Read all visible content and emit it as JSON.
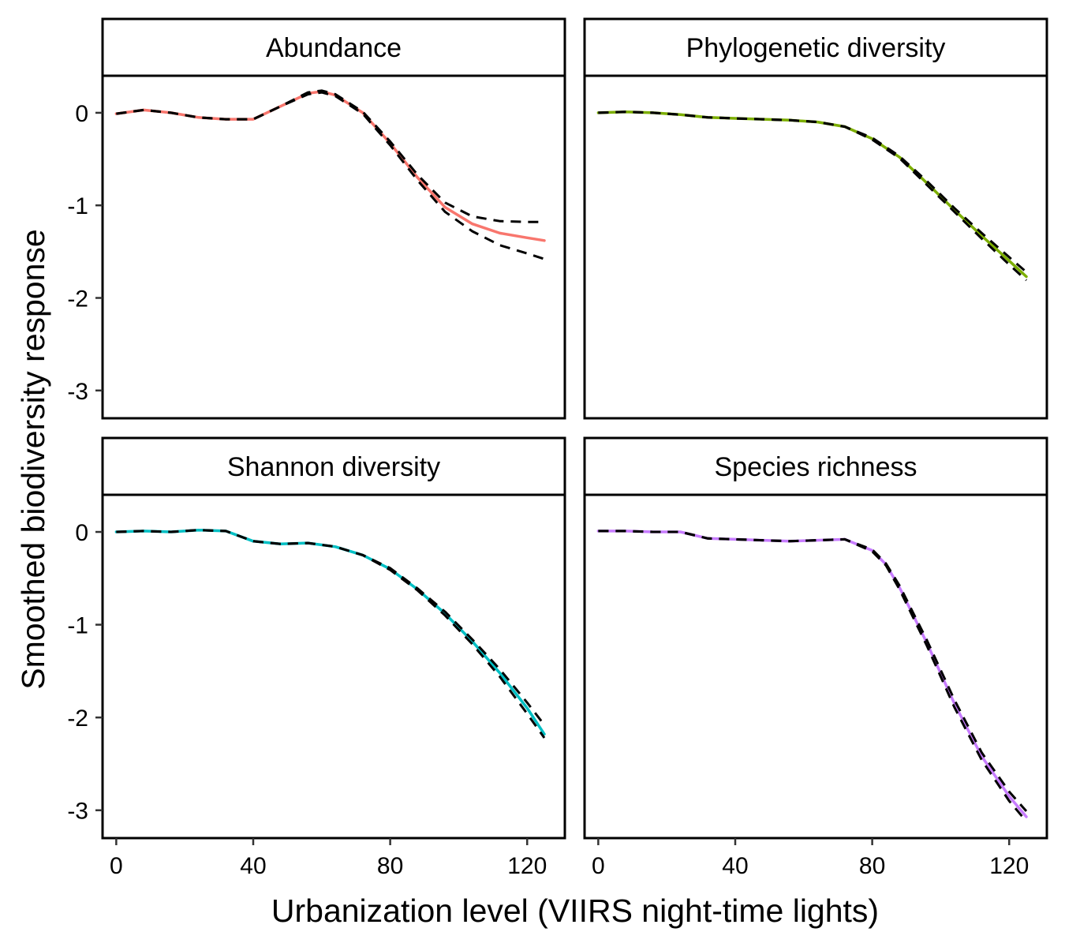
{
  "chart_data": {
    "type": "line",
    "layout": "facet-grid-2x2",
    "xlabel": "Urbanization level (VIIRS night-time lights)",
    "ylabel": "Smoothed biodiversity response",
    "xlim": [
      -4,
      131
    ],
    "ylim": [
      -3.3,
      0.4
    ],
    "x_ticks": [
      0,
      40,
      80,
      120
    ],
    "y_ticks": [
      0,
      -1,
      -2,
      -3
    ],
    "y_tick_labels": [
      "0",
      "-1",
      "-2",
      "-3"
    ],
    "grid": false,
    "facets": [
      {
        "strip": "Abundance",
        "color": "#F8766D",
        "x": [
          0,
          8,
          16,
          24,
          32,
          40,
          48,
          56,
          60,
          64,
          72,
          80,
          88,
          96,
          104,
          112,
          120,
          125
        ],
        "y": [
          -0.01,
          0.03,
          0.0,
          -0.05,
          -0.07,
          -0.07,
          0.07,
          0.21,
          0.23,
          0.19,
          0.0,
          -0.33,
          -0.7,
          -1.02,
          -1.2,
          -1.3,
          -1.35,
          -1.38
        ],
        "ci_upper": [
          -0.01,
          0.03,
          0.0,
          -0.05,
          -0.07,
          -0.07,
          0.07,
          0.22,
          0.24,
          0.2,
          0.01,
          -0.31,
          -0.67,
          -0.97,
          -1.12,
          -1.17,
          -1.18,
          -1.18
        ],
        "ci_lower": [
          -0.01,
          0.03,
          0.0,
          -0.05,
          -0.07,
          -0.07,
          0.07,
          0.2,
          0.22,
          0.18,
          -0.01,
          -0.35,
          -0.73,
          -1.07,
          -1.28,
          -1.43,
          -1.52,
          -1.58
        ]
      },
      {
        "strip": "Phylogenetic diversity",
        "color": "#7CAE00",
        "x": [
          0,
          8,
          16,
          24,
          32,
          40,
          48,
          56,
          64,
          72,
          80,
          88,
          96,
          104,
          112,
          120,
          125
        ],
        "y": [
          0.0,
          0.01,
          0.0,
          -0.02,
          -0.05,
          -0.06,
          -0.07,
          -0.08,
          -0.1,
          -0.15,
          -0.28,
          -0.48,
          -0.76,
          -1.05,
          -1.33,
          -1.6,
          -1.77
        ],
        "ci_upper": [
          0.0,
          0.01,
          0.0,
          -0.02,
          -0.05,
          -0.06,
          -0.07,
          -0.08,
          -0.1,
          -0.15,
          -0.27,
          -0.47,
          -0.74,
          -1.03,
          -1.3,
          -1.56,
          -1.72
        ],
        "ci_lower": [
          0.0,
          0.01,
          0.0,
          -0.02,
          -0.05,
          -0.06,
          -0.07,
          -0.08,
          -0.1,
          -0.15,
          -0.29,
          -0.49,
          -0.78,
          -1.07,
          -1.36,
          -1.64,
          -1.81
        ]
      },
      {
        "strip": "Shannon diversity",
        "color": "#00BFC4",
        "x": [
          0,
          8,
          16,
          24,
          32,
          40,
          48,
          56,
          64,
          72,
          80,
          88,
          96,
          104,
          112,
          120,
          125
        ],
        "y": [
          0.0,
          0.01,
          0.0,
          0.02,
          0.01,
          -0.1,
          -0.13,
          -0.12,
          -0.16,
          -0.25,
          -0.4,
          -0.62,
          -0.88,
          -1.18,
          -1.52,
          -1.9,
          -2.18
        ],
        "ci_upper": [
          0.0,
          0.01,
          0.0,
          0.02,
          0.01,
          -0.1,
          -0.13,
          -0.12,
          -0.16,
          -0.25,
          -0.39,
          -0.61,
          -0.86,
          -1.16,
          -1.48,
          -1.84,
          -2.08
        ],
        "ci_lower": [
          0.0,
          0.01,
          0.0,
          0.02,
          0.01,
          -0.1,
          -0.13,
          -0.12,
          -0.16,
          -0.25,
          -0.41,
          -0.63,
          -0.9,
          -1.21,
          -1.56,
          -1.96,
          -2.22
        ]
      },
      {
        "strip": "Species richness",
        "color": "#C77CFF",
        "x": [
          0,
          8,
          16,
          24,
          32,
          40,
          48,
          56,
          64,
          72,
          80,
          84,
          88,
          96,
          104,
          112,
          120,
          125
        ],
        "y": [
          0.01,
          0.01,
          0.0,
          0.0,
          -0.07,
          -0.08,
          -0.09,
          -0.1,
          -0.09,
          -0.08,
          -0.2,
          -0.35,
          -0.6,
          -1.2,
          -1.85,
          -2.42,
          -2.85,
          -3.07
        ],
        "ci_upper": [
          0.01,
          0.01,
          0.0,
          0.0,
          -0.07,
          -0.08,
          -0.09,
          -0.1,
          -0.09,
          -0.08,
          -0.19,
          -0.34,
          -0.58,
          -1.17,
          -1.81,
          -2.38,
          -2.8,
          -3.01
        ],
        "ci_lower": [
          0.01,
          0.01,
          0.0,
          0.0,
          -0.07,
          -0.08,
          -0.09,
          -0.1,
          -0.09,
          -0.08,
          -0.21,
          -0.36,
          -0.62,
          -1.23,
          -1.89,
          -2.46,
          -2.9,
          -3.12
        ]
      }
    ]
  }
}
